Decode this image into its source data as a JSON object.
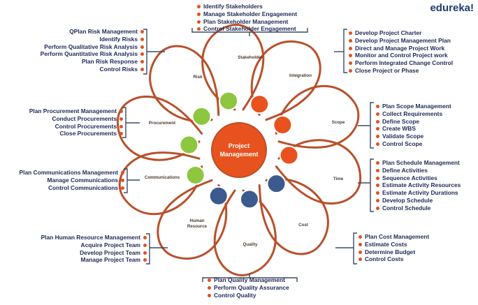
{
  "brand": "edureka!",
  "center_label": [
    "Project",
    "Management"
  ],
  "colors": {
    "petal": "#b8502b",
    "orange": "#e8521e",
    "green": "#8dc63f",
    "navy": "#3b5b8f",
    "text": "#1e2a55",
    "bracket": "#3a4a6a"
  },
  "areas": [
    {
      "key": "stakeholder",
      "label": "Stakeholder",
      "items": [
        "Identify Stakeholders",
        "Manage Stakeholder Engagement",
        "Plan Stakeholder Management",
        "Control Stakeholder Engagement"
      ]
    },
    {
      "key": "integration",
      "label": "Integration",
      "items": [
        "Develop Project Charter",
        "Develop Project Management Plan",
        "Direct and Manage Project Work",
        "Monitor and Control Project work",
        "Perform Integrated Change Control",
        "Close Project or Phase"
      ]
    },
    {
      "key": "scope",
      "label": "Scope",
      "items": [
        "Plan Scope Management",
        "Collect Requirements",
        "Define Scope",
        "Create WBS",
        "Validate Scope",
        "Control Scope"
      ]
    },
    {
      "key": "time",
      "label": "Time",
      "items": [
        "Plan Schedule  Management",
        "Define Activities",
        "Sequence Activities",
        "Estimate Activity Resources",
        "Estimate Activity Durations",
        "Develop Schedule",
        "Control Schedule"
      ]
    },
    {
      "key": "cost",
      "label": "Cost",
      "items": [
        "Plan Cost Management",
        "Estimate Costs",
        "Determine Budget",
        "Control Costs"
      ]
    },
    {
      "key": "quality",
      "label": "Quality",
      "items": [
        "Plan Quality Management",
        "Perform Quality Assurance",
        "Control Quality"
      ]
    },
    {
      "key": "human-resource",
      "label": [
        "Human",
        "Resource"
      ],
      "items": [
        "Plan Human Resource Management",
        "Acquire Project Team",
        "Develop Project Team",
        "Manage Project Team"
      ]
    },
    {
      "key": "communications",
      "label": "Communications",
      "items": [
        "Plan Communications Management",
        "Manage Communications",
        "Control Communications"
      ]
    },
    {
      "key": "procurement",
      "label": "Procurement",
      "items": [
        "Plan Procurement Management",
        "Conduct Procurements",
        "Control Procurements",
        "Close Procurements"
      ]
    },
    {
      "key": "risk",
      "label": "Risk",
      "items": [
        "QPlan Risk Management",
        "Identify Risks",
        "Perform Qualitative Risk Analysis",
        "Perform Quantitative Risk Analysis",
        "Plan Risk Response",
        "Control Risks"
      ]
    }
  ]
}
